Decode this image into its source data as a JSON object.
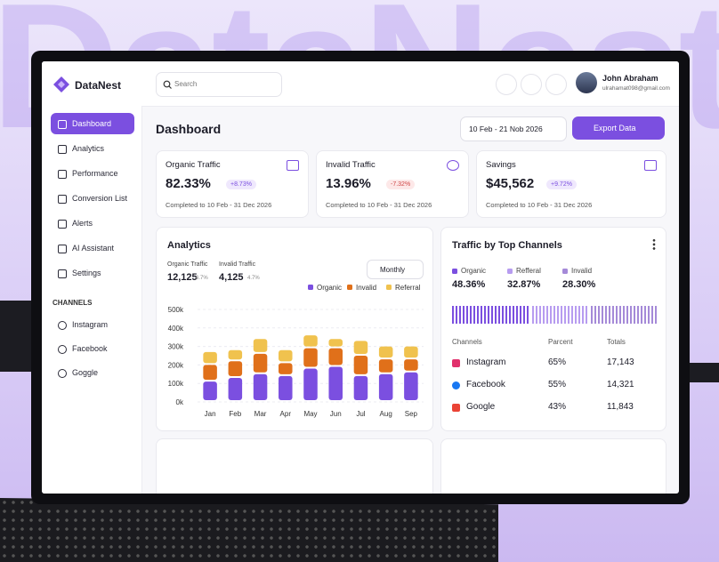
{
  "background_text": "DataNest",
  "sidebar": {
    "brand": "DataNest",
    "nav": [
      "Dashboard",
      "Analytics",
      "Performance",
      "Conversion List",
      "Alerts",
      "AI Assistant",
      "Settings"
    ],
    "channels_heading": "CHANNELS",
    "channels": [
      "Instagram",
      "Facebook",
      "Goggle"
    ]
  },
  "header": {
    "search": "Search",
    "title": "Dashboard",
    "user_name": "John Abraham",
    "user_email": "ulrahamat098@gmail.com",
    "date_range": "10 Feb - 21 Nob 2026",
    "export": "Export Data"
  },
  "cards": [
    {
      "title": "Organic Traffic",
      "value": "82.33%",
      "change": "+8.73%",
      "note": "Completed to 10 Feb - 31 Dec 2026"
    },
    {
      "title": "Invalid Traffic",
      "value": "13.96%",
      "change": "-7.32%",
      "note": "Completed to 10 Feb - 31 Dec 2026"
    },
    {
      "title": "Savings",
      "value": "$45,562",
      "change": "+9.72%",
      "note": "Completed to 10 Feb - 31 Dec 2026"
    }
  ],
  "analytics": {
    "title": "Analytics",
    "stats": [
      {
        "label": "Organic Traffic",
        "value": "12,125",
        "change": "6.7%"
      },
      {
        "label": "Invalid Traffic",
        "value": "4,125",
        "change": "4.7%"
      }
    ],
    "period": "Monthly",
    "chart": {
      "type": "bar",
      "stacked": true,
      "categories": [
        "Jan",
        "Feb",
        "Mar",
        "Apr",
        "May",
        "Jun",
        "Jul",
        "Aug",
        "Sep"
      ],
      "series": [
        {
          "name": "Organic",
          "color": "#7b4fe0",
          "values": [
            110000,
            130000,
            150000,
            140000,
            180000,
            190000,
            140000,
            150000,
            160000
          ]
        },
        {
          "name": "Invalid",
          "color": "#e0701a",
          "values": [
            90000,
            90000,
            110000,
            70000,
            110000,
            100000,
            110000,
            80000,
            70000
          ]
        },
        {
          "name": "Referral",
          "color": "#f0c24e",
          "values": [
            70000,
            60000,
            80000,
            70000,
            70000,
            50000,
            80000,
            70000,
            70000
          ]
        }
      ],
      "ylim": [
        0,
        500000
      ],
      "yticks": [
        {
          "value": 0,
          "label": "0k"
        },
        {
          "value": 100000,
          "label": "100k"
        },
        {
          "value": 200000,
          "label": "200k"
        },
        {
          "value": 300000,
          "label": "300k"
        },
        {
          "value": 400000,
          "label": "400k"
        },
        {
          "value": 500000,
          "label": "500k"
        }
      ]
    }
  },
  "traffic": {
    "title": "Traffic by Top Channels",
    "summary": [
      {
        "name": "Organic",
        "value": "48.36%",
        "color": "#7b4fe0"
      },
      {
        "name": "Refferal",
        "value": "32.87%",
        "color": "#b79cf0"
      },
      {
        "name": "Invalid",
        "value": "28.30%",
        "color": "#a58ad8"
      }
    ],
    "columns": [
      "Channels",
      "Parcent",
      "Totals"
    ],
    "rows": [
      [
        "Instagram",
        "65%",
        "17,143"
      ],
      [
        "Facebook",
        "55%",
        "14,321"
      ],
      [
        "Google",
        "43%",
        "11,843"
      ]
    ]
  }
}
